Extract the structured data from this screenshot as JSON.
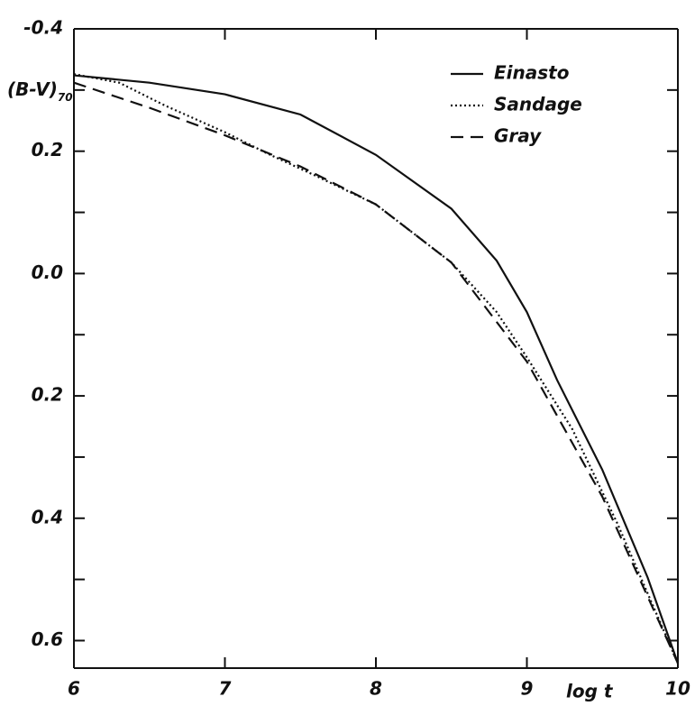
{
  "chart_data": {
    "type": "line",
    "ylabel": "(B-V)",
    "ylabel_subscript": "70",
    "xlabel": "log t",
    "xlim": [
      6,
      10
    ],
    "xticks": [
      6,
      7,
      8,
      9,
      10
    ],
    "ylim": [
      -0.4,
      0.645
    ],
    "y_inverted": true,
    "yticks": [
      -0.4,
      {
        "value": -0.2,
        "label": "0.2"
      },
      {
        "value": 0,
        "label": "0.0"
      },
      0.2,
      0.4,
      0.6
    ],
    "yminor_ticks": [
      -0.3,
      -0.1,
      0.1,
      0.3,
      0.5
    ],
    "legend": "upper right",
    "series": [
      {
        "name": "Einasto",
        "color": "#111111",
        "style": "solid",
        "x": [
          6.0,
          6.5,
          7.0,
          7.5,
          8.0,
          8.5,
          8.8,
          9.0,
          9.2,
          9.5,
          9.8,
          10.0
        ],
        "values": [
          -0.324,
          -0.312,
          -0.293,
          -0.26,
          -0.194,
          -0.106,
          -0.021,
          0.063,
          0.174,
          0.321,
          0.497,
          0.637
        ]
      },
      {
        "name": "Sandage",
        "color": "#111111",
        "style": "dotted",
        "x": [
          6.0,
          6.3,
          6.6,
          7.0,
          7.3,
          7.6,
          8.0,
          8.5,
          8.8,
          9.0,
          9.3,
          9.6,
          10.0
        ],
        "values": [
          -0.326,
          -0.312,
          -0.275,
          -0.231,
          -0.194,
          -0.16,
          -0.113,
          -0.018,
          0.063,
          0.137,
          0.254,
          0.409,
          0.637
        ]
      },
      {
        "name": "Gray",
        "color": "#111111",
        "style": "dashed",
        "x": [
          6.0,
          6.5,
          7.0,
          7.5,
          8.0,
          8.5,
          9.0,
          9.5,
          10.0
        ],
        "values": [
          -0.312,
          -0.271,
          -0.226,
          -0.175,
          -0.113,
          -0.018,
          0.144,
          0.365,
          0.637
        ]
      }
    ]
  }
}
